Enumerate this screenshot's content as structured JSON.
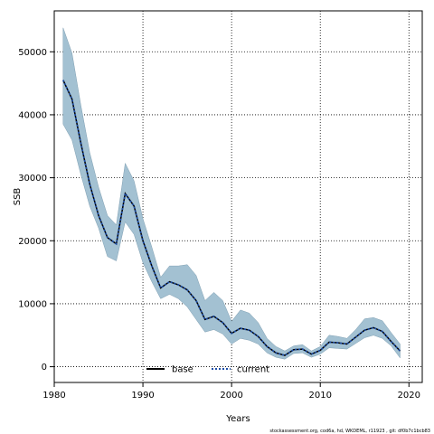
{
  "chart_data": {
    "type": "area",
    "xlabel": "Years",
    "ylabel": "SSB",
    "xlim": [
      1980,
      2021.5
    ],
    "ylim": [
      -2500,
      56500
    ],
    "xticks": [
      1980,
      1990,
      2000,
      2010,
      2020
    ],
    "yticks": [
      0,
      10000,
      20000,
      30000,
      40000,
      50000
    ],
    "grid": true,
    "legend_position": "bottom-center",
    "series": [
      {
        "name": "base",
        "style": "solid",
        "color": "#000000",
        "x": [
          1981,
          1982,
          1983,
          1984,
          1985,
          1986,
          1987,
          1988,
          1989,
          1990,
          1991,
          1992,
          1993,
          1994,
          1995,
          1996,
          1997,
          1998,
          1999,
          2000,
          2001,
          2002,
          2003,
          2004,
          2005,
          2006,
          2007,
          2008,
          2009,
          2010,
          2011,
          2012,
          2013,
          2014,
          2015,
          2016,
          2017,
          2018,
          2019
        ],
        "y": [
          45500,
          42500,
          35500,
          29000,
          24000,
          20500,
          19500,
          27500,
          25500,
          20000,
          16000,
          12500,
          13500,
          13000,
          12200,
          10500,
          7500,
          8000,
          7000,
          5300,
          6100,
          5800,
          4800,
          3200,
          2200,
          1800,
          2700,
          2800,
          2000,
          2600,
          3900,
          3800,
          3600,
          4700,
          5800,
          6200,
          5600,
          4000,
          2500
        ]
      },
      {
        "name": "current",
        "style": "dotted",
        "color": "#1f4fa8",
        "x": [
          1981,
          1982,
          1983,
          1984,
          1985,
          1986,
          1987,
          1988,
          1989,
          1990,
          1991,
          1992,
          1993,
          1994,
          1995,
          1996,
          1997,
          1998,
          1999,
          2000,
          2001,
          2002,
          2003,
          2004,
          2005,
          2006,
          2007,
          2008,
          2009,
          2010,
          2011,
          2012,
          2013,
          2014,
          2015,
          2016,
          2017,
          2018,
          2019
        ],
        "y": [
          45500,
          42500,
          35500,
          29000,
          24000,
          20500,
          19500,
          27500,
          25500,
          20000,
          16000,
          12500,
          13500,
          13000,
          12200,
          10500,
          7500,
          8000,
          7000,
          5300,
          6100,
          5800,
          4800,
          3200,
          2200,
          1800,
          2700,
          2800,
          2000,
          2600,
          3900,
          3800,
          3600,
          4700,
          5800,
          6200,
          5600,
          4000,
          2500
        ]
      }
    ],
    "confidence_band": {
      "color": "#a3c1d2",
      "x": [
        1981,
        1982,
        1983,
        1984,
        1985,
        1986,
        1987,
        1988,
        1989,
        1990,
        1991,
        1992,
        1993,
        1994,
        1995,
        1996,
        1997,
        1998,
        1999,
        2000,
        2001,
        2002,
        2003,
        2004,
        2005,
        2006,
        2007,
        2008,
        2009,
        2010,
        2011,
        2012,
        2013,
        2014,
        2015,
        2016,
        2017,
        2018,
        2019
      ],
      "upper": [
        53800,
        49800,
        41500,
        34000,
        28500,
        24000,
        22500,
        32300,
        29500,
        23500,
        19000,
        14200,
        16000,
        16000,
        16200,
        14500,
        10500,
        11800,
        10500,
        7200,
        9000,
        8500,
        7000,
        4500,
        3200,
        2500,
        3300,
        3500,
        2500,
        3200,
        5000,
        4800,
        4500,
        5900,
        7600,
        7800,
        7300,
        5400,
        3600
      ],
      "lower": [
        38500,
        36000,
        30500,
        25500,
        22000,
        17500,
        16800,
        23000,
        21000,
        16500,
        13500,
        10800,
        11500,
        10800,
        9500,
        7500,
        5500,
        5900,
        5200,
        3600,
        4500,
        4200,
        3600,
        2200,
        1500,
        1200,
        2100,
        2200,
        1500,
        2000,
        3000,
        2900,
        2800,
        3700,
        4600,
        5000,
        4500,
        3300,
        1400
      ]
    },
    "footer": "stockassessment.org, cod6a, hd, WKDEML, r11923 , git: df0b7c1bcb83"
  }
}
